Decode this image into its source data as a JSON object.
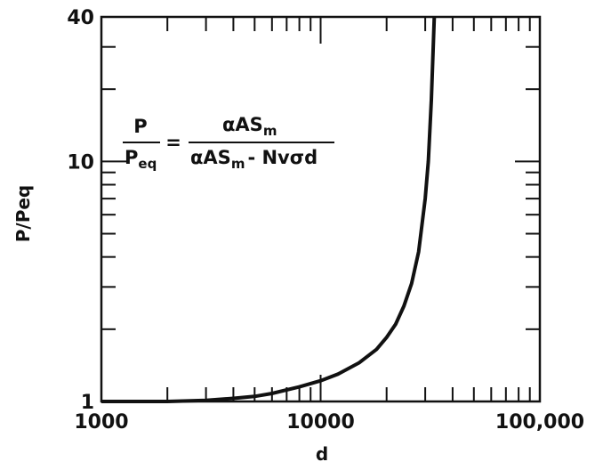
{
  "chart_data": {
    "type": "line",
    "x_scale": "log",
    "y_scale": "log",
    "xlabel": "d",
    "ylabel": "P/Peq",
    "xlim": [
      1000,
      100000
    ],
    "ylim": [
      1,
      40
    ],
    "x_tick_labels": [
      {
        "value": 1000,
        "label": "1000"
      },
      {
        "value": 10000,
        "label": "10000"
      },
      {
        "value": 100000,
        "label": "100,000"
      }
    ],
    "y_tick_labels": [
      {
        "value": 1,
        "label": "1"
      },
      {
        "value": 10,
        "label": "10"
      },
      {
        "value": 40,
        "label": "40"
      }
    ],
    "annotation": {
      "lhs_num": "P",
      "lhs_den": "P",
      "lhs_den_sub": "eq",
      "equals": "=",
      "rhs_num": "αAS",
      "rhs_num_sub": "m",
      "rhs_den": "αAS",
      "rhs_den_sub": "m",
      "rhs_den_rest": "- Nvσd"
    },
    "series": [
      {
        "x": [
          1000,
          2000,
          3000,
          4000,
          5000,
          6000,
          8000,
          10000,
          12000,
          15000,
          18000,
          20000,
          22000,
          24000,
          26000,
          28000,
          30000,
          31000,
          32000,
          33000
        ],
        "y": [
          1.0,
          1.0,
          1.01,
          1.03,
          1.05,
          1.08,
          1.15,
          1.22,
          1.3,
          1.45,
          1.65,
          1.85,
          2.1,
          2.5,
          3.1,
          4.2,
          7.0,
          10.0,
          18.0,
          40.0
        ]
      }
    ]
  }
}
